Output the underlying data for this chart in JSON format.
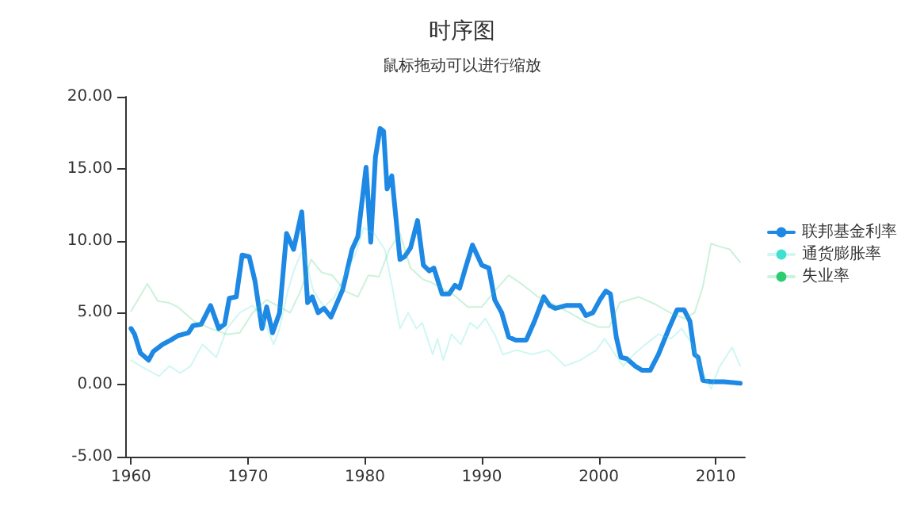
{
  "chart_data": {
    "type": "line",
    "title": "时序图",
    "subtitle": "鼠标拖动可以进行缩放",
    "xlim": [
      1959.5,
      2012.5
    ],
    "xticks": [
      1960,
      1970,
      1980,
      1990,
      2000,
      2010
    ],
    "ylim": [
      -5,
      20
    ],
    "yticks": [
      {
        "value": -5,
        "label": "-5.00"
      },
      {
        "value": 0,
        "label": "0.00"
      },
      {
        "value": 5,
        "label": "5.00"
      },
      {
        "value": 10,
        "label": "10.00"
      },
      {
        "value": 15,
        "label": "15.00"
      },
      {
        "value": 20,
        "label": "20.00"
      }
    ],
    "grid": false,
    "legend": "right",
    "marker": "none",
    "line_style": "solid",
    "series": [
      {
        "name": "联邦基金利率",
        "color": "#1e88e5",
        "x": [
          1960.0,
          1960.3,
          1960.8,
          1961.5,
          1961.9,
          1962.7,
          1963.4,
          1964.0,
          1964.9,
          1965.3,
          1966.0,
          1966.8,
          1967.5,
          1968.0,
          1968.4,
          1969.0,
          1969.5,
          1970.1,
          1970.6,
          1971.2,
          1971.6,
          1972.1,
          1972.7,
          1973.3,
          1973.9,
          1974.6,
          1975.1,
          1975.5,
          1976.0,
          1976.5,
          1977.1,
          1978.1,
          1978.9,
          1979.4,
          1980.1,
          1980.5,
          1980.9,
          1981.3,
          1981.6,
          1981.9,
          1982.3,
          1983.0,
          1983.4,
          1983.9,
          1984.5,
          1985.0,
          1985.5,
          1985.9,
          1986.6,
          1987.2,
          1987.7,
          1988.1,
          1988.6,
          1989.2,
          1990.0,
          1990.6,
          1991.1,
          1991.7,
          1992.3,
          1992.9,
          1993.8,
          1994.5,
          1995.3,
          1995.8,
          1996.3,
          1997.2,
          1998.4,
          1998.9,
          1999.5,
          2000.1,
          2000.6,
          2001.0,
          2001.5,
          2001.9,
          2002.4,
          2003.1,
          2003.7,
          2004.4,
          2005.1,
          2006.0,
          2006.7,
          2007.3,
          2007.8,
          2008.2,
          2008.5,
          2008.9,
          2009.6,
          2010.7,
          2012.1
        ],
        "values": [
          3.9,
          3.5,
          2.2,
          1.7,
          2.3,
          2.8,
          3.1,
          3.4,
          3.6,
          4.1,
          4.2,
          5.5,
          3.9,
          4.2,
          6.0,
          6.1,
          9.0,
          8.9,
          7.2,
          3.9,
          5.4,
          3.6,
          5.0,
          10.5,
          9.4,
          12.0,
          5.7,
          6.1,
          5.0,
          5.3,
          4.7,
          6.6,
          9.4,
          10.3,
          15.1,
          9.9,
          15.8,
          17.8,
          17.6,
          13.6,
          14.5,
          8.7,
          8.9,
          9.5,
          11.4,
          8.3,
          7.9,
          8.1,
          6.3,
          6.3,
          6.9,
          6.7,
          8.1,
          9.7,
          8.3,
          8.1,
          5.9,
          5.0,
          3.3,
          3.1,
          3.1,
          4.4,
          6.1,
          5.5,
          5.3,
          5.5,
          5.5,
          4.8,
          5.0,
          5.9,
          6.5,
          6.3,
          3.3,
          1.9,
          1.8,
          1.3,
          1.0,
          1.0,
          2.1,
          3.9,
          5.2,
          5.2,
          4.4,
          2.1,
          1.9,
          0.3,
          0.2,
          0.2,
          0.1
        ]
      },
      {
        "name": "通货膨胀率",
        "color": "#40e0d0",
        "x": [
          1960.0,
          1961.0,
          1962.4,
          1963.3,
          1964.2,
          1965.1,
          1966.1,
          1967.3,
          1968.2,
          1969.3,
          1970.4,
          1971.3,
          1972.2,
          1972.7,
          1973.4,
          1974.0,
          1974.7,
          1975.6,
          1976.5,
          1977.4,
          1978.3,
          1979.2,
          1979.9,
          1980.8,
          1981.7,
          1982.4,
          1983.0,
          1983.7,
          1984.4,
          1984.9,
          1985.8,
          1986.2,
          1986.7,
          1987.4,
          1988.2,
          1989.0,
          1989.6,
          1990.3,
          1991.1,
          1991.8,
          1993.0,
          1994.3,
          1995.7,
          1997.1,
          1998.4,
          1999.8,
          2000.5,
          2001.4,
          2002.1,
          2003.0,
          2004.0,
          2005.1,
          2006.2,
          2007.1,
          2008.0,
          2008.8,
          2009.6,
          2010.3,
          2011.4,
          2012.1
        ],
        "values": [
          1.7,
          1.2,
          0.6,
          1.3,
          0.8,
          1.3,
          2.8,
          1.9,
          3.9,
          5.0,
          5.5,
          4.6,
          2.8,
          3.9,
          6.5,
          8.1,
          9.4,
          6.5,
          5.4,
          6.1,
          7.6,
          9.1,
          10.9,
          10.5,
          9.4,
          6.5,
          3.9,
          5.0,
          3.9,
          4.3,
          2.1,
          3.2,
          1.7,
          3.5,
          2.8,
          4.3,
          3.9,
          4.6,
          3.5,
          2.1,
          2.4,
          2.1,
          2.4,
          1.3,
          1.7,
          2.4,
          3.2,
          2.1,
          1.3,
          2.1,
          2.8,
          3.5,
          3.2,
          3.9,
          2.8,
          1.0,
          -0.3,
          1.2,
          2.6,
          1.3
        ]
      },
      {
        "name": "失业率",
        "color": "#2ecc71",
        "x": [
          1960.0,
          1961.4,
          1962.3,
          1963.2,
          1964.0,
          1965.4,
          1966.8,
          1968.2,
          1969.3,
          1970.4,
          1971.6,
          1972.7,
          1973.6,
          1974.5,
          1975.4,
          1976.3,
          1977.2,
          1978.3,
          1979.4,
          1980.3,
          1981.2,
          1982.1,
          1983.0,
          1983.9,
          1985.0,
          1985.7,
          1987.5,
          1988.8,
          1990.0,
          1991.1,
          1992.3,
          1993.4,
          1994.8,
          1996.1,
          1997.5,
          1998.8,
          2000.0,
          2000.9,
          2001.8,
          2003.4,
          2004.8,
          2006.1,
          2007.3,
          2008.2,
          2008.9,
          2009.6,
          2010.3,
          2011.2,
          2012.1
        ],
        "values": [
          5.1,
          7.0,
          5.8,
          5.7,
          5.4,
          4.4,
          3.9,
          3.5,
          3.6,
          5.0,
          5.9,
          5.4,
          5.0,
          6.5,
          8.7,
          7.8,
          7.6,
          6.5,
          6.1,
          7.6,
          7.5,
          9.4,
          10.5,
          8.1,
          7.3,
          7.1,
          6.3,
          5.4,
          5.4,
          6.5,
          7.6,
          7.0,
          6.1,
          5.6,
          5.0,
          4.4,
          4.0,
          4.0,
          5.7,
          6.1,
          5.6,
          5.0,
          4.6,
          5.0,
          6.8,
          9.8,
          9.6,
          9.4,
          8.5
        ]
      }
    ]
  }
}
